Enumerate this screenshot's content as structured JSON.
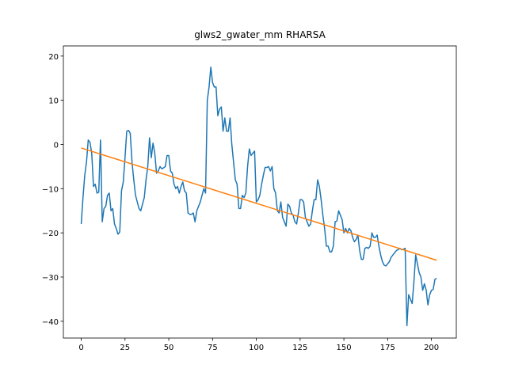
{
  "chart_data": {
    "type": "line",
    "title": "glws2_gwater_mm RHARSA",
    "xlim": [
      -10.2,
      214.2
    ],
    "ylim": [
      -43.8,
      22.3
    ],
    "xticks": [
      0,
      25,
      50,
      75,
      100,
      125,
      150,
      175,
      200
    ],
    "yticks": [
      {
        "value": -40,
        "label": "−40"
      },
      {
        "value": -30,
        "label": "−30"
      },
      {
        "value": -20,
        "label": "−20"
      },
      {
        "value": -10,
        "label": "−10"
      },
      0,
      10,
      20
    ],
    "series": [
      {
        "color": "#1f77b4",
        "x": [
          0,
          1,
          2,
          3,
          4,
          5,
          6,
          7,
          8,
          9,
          10,
          11,
          12,
          13,
          14,
          15,
          16,
          17,
          18,
          19,
          20,
          21,
          22,
          23,
          24,
          25,
          26,
          27,
          28,
          29,
          30,
          31,
          32,
          33,
          34,
          35,
          36,
          37,
          38,
          39,
          40,
          41,
          42,
          43,
          44,
          45,
          46,
          47,
          48,
          49,
          50,
          51,
          52,
          53,
          54,
          55,
          56,
          57,
          58,
          59,
          60,
          61,
          62,
          63,
          64,
          65,
          66,
          67,
          68,
          69,
          70,
          71,
          72,
          73,
          74,
          75,
          76,
          77,
          78,
          79,
          80,
          81,
          82,
          83,
          84,
          85,
          86,
          87,
          88,
          89,
          90,
          91,
          92,
          93,
          94,
          95,
          96,
          97,
          98,
          99,
          100,
          101,
          102,
          103,
          104,
          105,
          106,
          107,
          108,
          109,
          110,
          111,
          112,
          113,
          114,
          115,
          116,
          117,
          118,
          119,
          120,
          121,
          122,
          123,
          124,
          125,
          126,
          127,
          128,
          129,
          130,
          131,
          132,
          133,
          134,
          135,
          136,
          137,
          138,
          139,
          140,
          141,
          142,
          143,
          144,
          145,
          146,
          147,
          148,
          149,
          150,
          151,
          152,
          153,
          154,
          155,
          156,
          157,
          158,
          159,
          160,
          161,
          162,
          163,
          164,
          165,
          166,
          167,
          168,
          169,
          170,
          171,
          172,
          173,
          174,
          175,
          176,
          177,
          178,
          179,
          180,
          181,
          182,
          183,
          184,
          185,
          186,
          187,
          188,
          189,
          190,
          191,
          192,
          193,
          194,
          195,
          196,
          197,
          198,
          199,
          200,
          201,
          202,
          203
        ],
        "values": [
          -18,
          -12,
          -7,
          -4,
          1,
          0.5,
          -2,
          -9.5,
          -9,
          -11,
          -10.8,
          1,
          -17.5,
          -14.5,
          -14,
          -11.5,
          -11,
          -15,
          -14.5,
          -18,
          -19,
          -20.3,
          -19.8,
          -10.5,
          -8.5,
          -3,
          3,
          3.2,
          2.5,
          -4,
          -8,
          -11.5,
          -13,
          -14.5,
          -15,
          -13.5,
          -12,
          -8,
          -5,
          1.5,
          -3,
          0.3,
          -2,
          -6.5,
          -6,
          -5,
          -5.5,
          -5.3,
          -5,
          -2.5,
          -2.5,
          -6,
          -6.5,
          -9,
          -10,
          -9.5,
          -11,
          -9.5,
          -8.5,
          -10.5,
          -11,
          -15.5,
          -15.8,
          -15.8,
          -15.5,
          -17.5,
          -15,
          -14,
          -13,
          -11.5,
          -10,
          -11,
          10,
          13,
          17.5,
          14,
          13,
          13,
          6.5,
          8,
          8.5,
          3,
          6,
          3,
          3,
          6,
          0,
          -4,
          -8,
          -9,
          -14.5,
          -14.5,
          -11.5,
          -12,
          -11,
          -5,
          -1,
          -2.5,
          -2,
          -1.5,
          -13,
          -12.5,
          -11.5,
          -9,
          -7,
          -5.2,
          -5.2,
          -5,
          -6,
          -5,
          -10,
          -11,
          -15,
          -15.5,
          -13,
          -16.5,
          -17.5,
          -18.5,
          -13.5,
          -14,
          -15.5,
          -16,
          -17.5,
          -18,
          -15.5,
          -12.5,
          -12.5,
          -13,
          -16.5,
          -17.5,
          -18.5,
          -18,
          -15,
          -12.5,
          -12.5,
          -8,
          -9.5,
          -12.5,
          -16,
          -19,
          -23,
          -23,
          -24.3,
          -24.3,
          -23,
          -17.5,
          -17.3,
          -15,
          -16,
          -17,
          -20,
          -19,
          -20,
          -19,
          -19.5,
          -21,
          -22,
          -21.5,
          -20.5,
          -24,
          -26,
          -26,
          -23.5,
          -23.3,
          -23.5,
          -23,
          -20,
          -21,
          -21,
          -20.5,
          -23,
          -25,
          -26.5,
          -27.3,
          -27.5,
          -27,
          -26.5,
          -25.5,
          -25,
          -24.5,
          -24,
          -23.8,
          -23.5,
          -23.8,
          -23.7,
          -23.5,
          -41,
          -34,
          -35,
          -36,
          -31,
          -25,
          -27,
          -29,
          -30,
          -33,
          -31.5,
          -33,
          -36.3,
          -34,
          -33,
          -32.8,
          -30.5,
          -30.3
        ]
      },
      {
        "color": "#ff7f0e",
        "x": [
          0,
          203
        ],
        "values": [
          -0.8,
          -26.2
        ]
      }
    ]
  }
}
